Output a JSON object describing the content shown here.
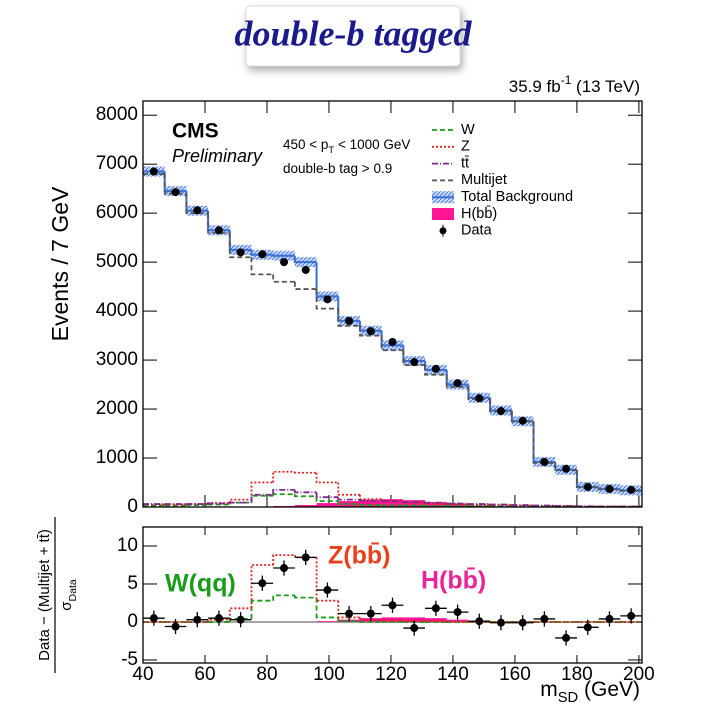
{
  "chart_data": [
    {
      "type": "histogram",
      "title": "double-b tagged",
      "lumi": [
        "35.9 fb",
        "-1",
        " (13 TeV)"
      ],
      "experiment": "CMS",
      "status": "Preliminary",
      "selection": [
        [
          "450 < p",
          "T",
          " < 1000 GeV"
        ],
        [
          "double-b tag > 0.9"
        ]
      ],
      "ylabel": "Events / 7 GeV",
      "bins": [
        40,
        47,
        54,
        61,
        68,
        75,
        82,
        89,
        96,
        103,
        110,
        117,
        124,
        131,
        138,
        145,
        152,
        159,
        166,
        173,
        180,
        187,
        194,
        201
      ],
      "xlim": [
        40,
        201
      ],
      "xticks": [
        40,
        60,
        80,
        100,
        120,
        140,
        160,
        180,
        200
      ],
      "ylim": [
        0,
        8290
      ],
      "yticks": [
        0,
        1000,
        2000,
        3000,
        4000,
        5000,
        6000,
        7000,
        8000
      ],
      "legend": "upper right",
      "series": [
        {
          "name": "W",
          "color": "#1a9c1a",
          "style": "dashed",
          "values": [
            30,
            30,
            40,
            50,
            90,
            230,
            260,
            220,
            120,
            60,
            40,
            30,
            30,
            20,
            20,
            20,
            15,
            10,
            10,
            5,
            5,
            5,
            5
          ]
        },
        {
          "name": "Z",
          "color": "#e02020",
          "style": "dotted",
          "values": [
            50,
            50,
            60,
            80,
            150,
            500,
            720,
            700,
            500,
            250,
            160,
            120,
            90,
            70,
            60,
            50,
            40,
            30,
            20,
            20,
            10,
            10,
            10
          ]
        },
        {
          "name": "tt̄",
          "color": "#7a2a8a",
          "style": "dashdot",
          "values": [
            60,
            60,
            60,
            70,
            90,
            250,
            350,
            300,
            200,
            150,
            130,
            120,
            100,
            90,
            70,
            60,
            50,
            40,
            30,
            20,
            15,
            10,
            10
          ]
        },
        {
          "name": "Multijet",
          "color": "#555555",
          "style": "dashed",
          "values": [
            6800,
            6400,
            6000,
            5600,
            5100,
            4750,
            4600,
            4450,
            4050,
            3700,
            3500,
            3200,
            2900,
            2700,
            2450,
            2200,
            1950,
            1750,
            900,
            750,
            400,
            360,
            330
          ]
        },
        {
          "name": "Total Background",
          "color": "#3a6fd8",
          "style": "band",
          "values": [
            6850,
            6450,
            6050,
            5650,
            5250,
            5150,
            5130,
            5000,
            4300,
            3800,
            3600,
            3300,
            2980,
            2800,
            2500,
            2230,
            1970,
            1750,
            920,
            760,
            410,
            370,
            340
          ]
        },
        {
          "name": "H(bb̄)",
          "color": "#ff1493",
          "style": "fill",
          "values": [
            0,
            0,
            0,
            0,
            5,
            10,
            20,
            40,
            80,
            120,
            150,
            160,
            140,
            100,
            60,
            30,
            15,
            5,
            0,
            0,
            0,
            0,
            0
          ]
        },
        {
          "name": "Data",
          "color": "#000000",
          "style": "points",
          "values": [
            6850,
            6430,
            6060,
            5650,
            5200,
            5160,
            5000,
            4840,
            4240,
            3800,
            3590,
            3370,
            2960,
            2820,
            2530,
            2220,
            1960,
            1760,
            920,
            780,
            410,
            370,
            350
          ]
        }
      ]
    },
    {
      "type": "histogram",
      "ylabel": [
        "Data − (Multijet + tt̄)",
        [
          "σ",
          "Data"
        ]
      ],
      "xlabel": [
        "m",
        "SD",
        " (GeV)"
      ],
      "bins": [
        40,
        47,
        54,
        61,
        68,
        75,
        82,
        89,
        96,
        103,
        110,
        117,
        124,
        131,
        138,
        145,
        152,
        159,
        166,
        173,
        180,
        187,
        194,
        201
      ],
      "xlim": [
        40,
        201
      ],
      "xticks": [
        40,
        60,
        80,
        100,
        120,
        140,
        160,
        180,
        200
      ],
      "ylim": [
        -5.4,
        12.5
      ],
      "yticks": [
        -5,
        0,
        5,
        10
      ],
      "series": [
        {
          "color": "#ff1493",
          "style": "fill",
          "values": [
            0,
            0,
            0,
            0,
            0,
            0,
            0,
            0,
            0.1,
            0.3,
            0.5,
            0.6,
            0.6,
            0.5,
            0.3,
            0.1,
            0,
            0,
            0,
            0,
            0,
            0,
            0
          ]
        },
        {
          "color": "#1a9c1a",
          "style": "dashed",
          "values": [
            0,
            0,
            0,
            0,
            0.4,
            2.8,
            3.5,
            3.2,
            0.6,
            0.1,
            0,
            0,
            0,
            0,
            0,
            0,
            0,
            0,
            0,
            0,
            0,
            0,
            0
          ]
        },
        {
          "color": "#e02020",
          "style": "dotted",
          "values": [
            0,
            0,
            0,
            0.3,
            1.8,
            7.5,
            8.8,
            8.5,
            2.8,
            0.6,
            0.3,
            0.2,
            0.1,
            0.1,
            0,
            0,
            0,
            0,
            0,
            0,
            0,
            0,
            0
          ]
        },
        {
          "color": "#000000",
          "style": "points",
          "values": [
            0.5,
            -0.6,
            0.3,
            0.5,
            0.3,
            5.1,
            7.1,
            8.5,
            4.2,
            1.1,
            1.1,
            2.2,
            -0.8,
            1.8,
            1.3,
            0.1,
            -0.1,
            -0.1,
            0.4,
            -2.1,
            -0.7,
            0.4,
            0.8
          ],
          "errors": [
            1,
            1,
            1,
            1,
            1,
            1,
            1,
            1,
            1,
            1,
            1,
            1,
            1,
            1,
            1,
            1,
            1,
            1,
            1,
            1,
            1,
            1,
            1
          ]
        }
      ],
      "annotations": [
        {
          "text": "W(qq)",
          "color": "#1a9c1a"
        },
        {
          "text": "Z(bb̄)",
          "color": "#e8401c"
        },
        {
          "text": "H(bb̄)",
          "color": "#e8259a"
        }
      ]
    }
  ]
}
